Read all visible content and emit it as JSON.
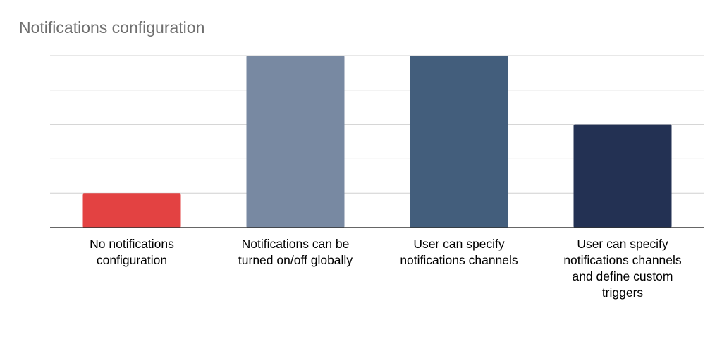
{
  "chart_data": {
    "type": "bar",
    "title": "Notifications configuration",
    "xlabel": "",
    "ylabel": "",
    "categories": [
      [
        "No notifications",
        "configuration"
      ],
      [
        "Notifications can be",
        "turned on/off globally"
      ],
      [
        "User can specify",
        "notifications channels"
      ],
      [
        "User can specify",
        "notifications channels",
        "and define custom",
        "triggers"
      ]
    ],
    "values": [
      1,
      5,
      5,
      3
    ],
    "ylim": [
      0,
      5
    ],
    "grid": true,
    "legend": "none",
    "colors": [
      "#E34242",
      "#7889A2",
      "#435E7C",
      "#233153"
    ]
  }
}
